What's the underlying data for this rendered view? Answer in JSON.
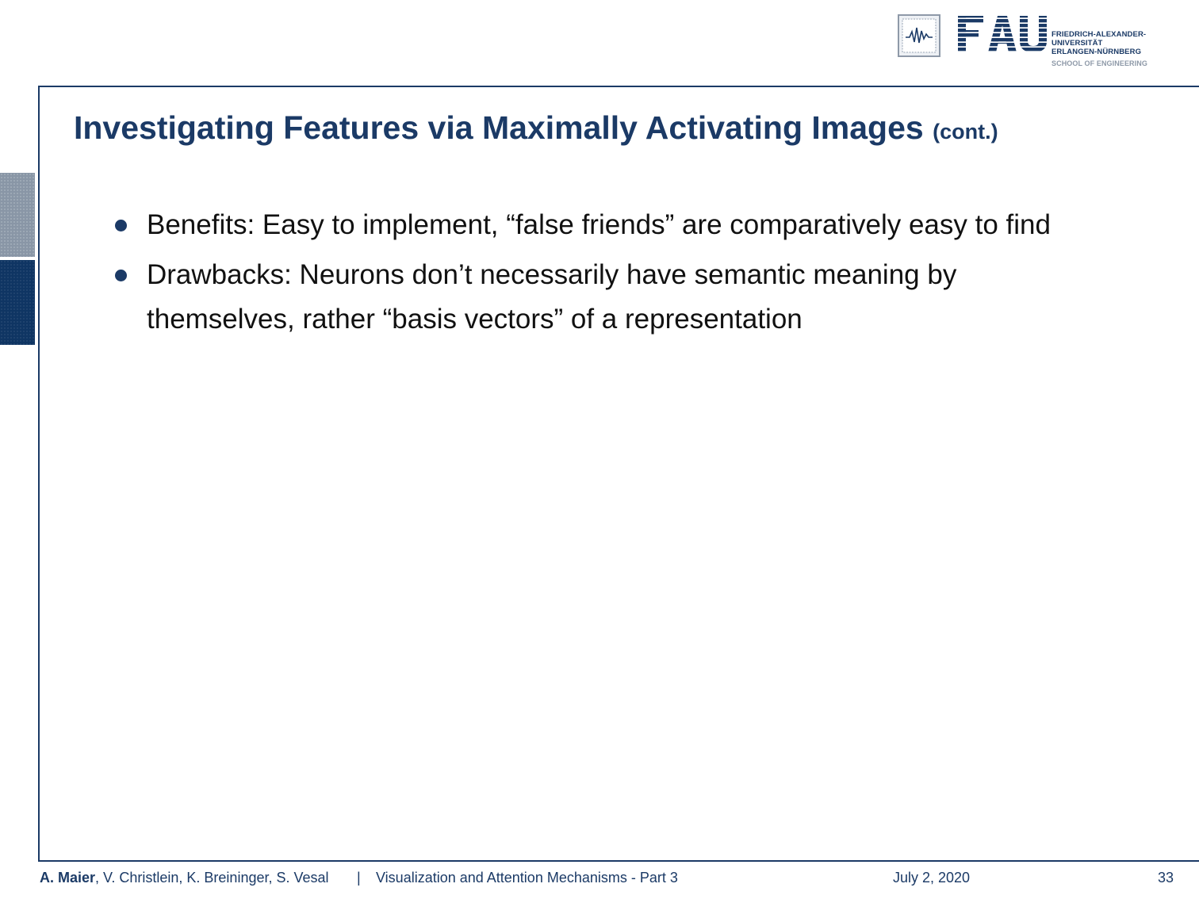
{
  "header": {
    "logo_wordmark": "FAU",
    "university_lines": [
      "FRIEDRICH-ALEXANDER-",
      "UNIVERSITÄT",
      "ERLANGEN-NÜRNBERG"
    ],
    "school": "SCHOOL OF ENGINEERING",
    "seal_icon": "waveform-seal-icon"
  },
  "slide": {
    "title": "Investigating Features via Maximally Activating Images",
    "title_suffix": "(cont.)",
    "bullets": [
      "Benefits: Easy to implement, “false friends” are comparatively easy to find",
      "Drawbacks: Neurons don’t necessarily have semantic meaning by themselves, rather “basis vectors” of a representation"
    ]
  },
  "footer": {
    "lead_author": "A. Maier",
    "other_authors": ", V. Christlein, K. Breininger, S. Vesal",
    "separator": "|",
    "lecture": "Visualization and Attention Mechanisms - Part 3",
    "date": "July 2, 2020",
    "page": "33"
  },
  "colors": {
    "brand": "#1b3a66",
    "tab_inactive": "#8996a6",
    "tab_active": "#0f3563",
    "logo_grey": "#8e99a8"
  }
}
